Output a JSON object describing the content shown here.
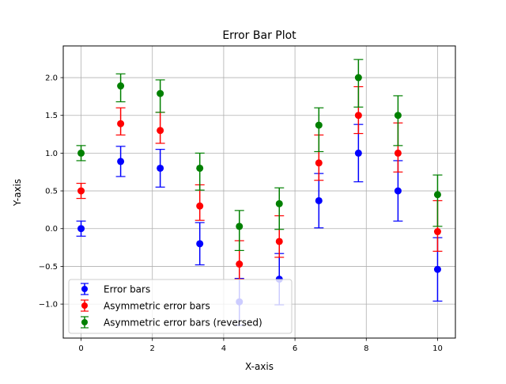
{
  "chart_data": {
    "type": "scatter",
    "title": "Error Bar Plot",
    "xlabel": "X-axis",
    "ylabel": "Y-axis",
    "xlim": [
      -0.5,
      10.5
    ],
    "ylim": [
      -1.45,
      2.42
    ],
    "x_ticks": [
      0,
      2,
      4,
      6,
      8,
      10
    ],
    "x_tick_labels": [
      "0",
      "2",
      "4",
      "6",
      "8",
      "10"
    ],
    "y_ticks": [
      -1.0,
      -0.5,
      0.0,
      0.5,
      1.0,
      1.5,
      2.0
    ],
    "y_tick_labels": [
      "−1.0",
      "−0.5",
      "0.0",
      "0.5",
      "1.0",
      "1.5",
      "2.0"
    ],
    "grid": true,
    "legend_position": "lower-left",
    "x": [
      0,
      1.11,
      2.22,
      3.33,
      4.44,
      5.56,
      6.67,
      7.78,
      8.89,
      10.0
    ],
    "series": [
      {
        "name": "Error bars",
        "color": "#0000ff",
        "values": [
          0.0,
          0.89,
          0.8,
          -0.2,
          -0.97,
          -0.67,
          0.37,
          1.0,
          0.5,
          -0.54
        ],
        "err_lower": [
          0.1,
          0.2,
          0.25,
          0.28,
          0.31,
          0.34,
          0.36,
          0.38,
          0.4,
          0.42
        ],
        "err_upper": [
          0.1,
          0.2,
          0.25,
          0.28,
          0.31,
          0.34,
          0.36,
          0.38,
          0.4,
          0.42
        ]
      },
      {
        "name": "Asymmetric error bars",
        "color": "#ff0000",
        "values": [
          0.5,
          1.39,
          1.3,
          0.3,
          -0.47,
          -0.17,
          0.87,
          1.5,
          1.0,
          -0.04
        ],
        "err_lower": [
          0.1,
          0.15,
          0.17,
          0.19,
          0.2,
          0.21,
          0.23,
          0.24,
          0.25,
          0.26
        ],
        "err_upper": [
          0.1,
          0.21,
          0.24,
          0.28,
          0.31,
          0.34,
          0.37,
          0.38,
          0.4,
          0.41
        ]
      },
      {
        "name": "Asymmetric error bars (reversed)",
        "color": "#008000",
        "values": [
          1.0,
          1.89,
          1.79,
          0.8,
          0.03,
          0.33,
          1.37,
          2.0,
          1.5,
          0.45
        ],
        "err_lower": [
          0.1,
          0.21,
          0.25,
          0.29,
          0.32,
          0.34,
          0.35,
          0.39,
          0.4,
          0.42
        ],
        "err_upper": [
          0.1,
          0.16,
          0.18,
          0.2,
          0.21,
          0.21,
          0.23,
          0.24,
          0.26,
          0.26
        ]
      }
    ]
  }
}
